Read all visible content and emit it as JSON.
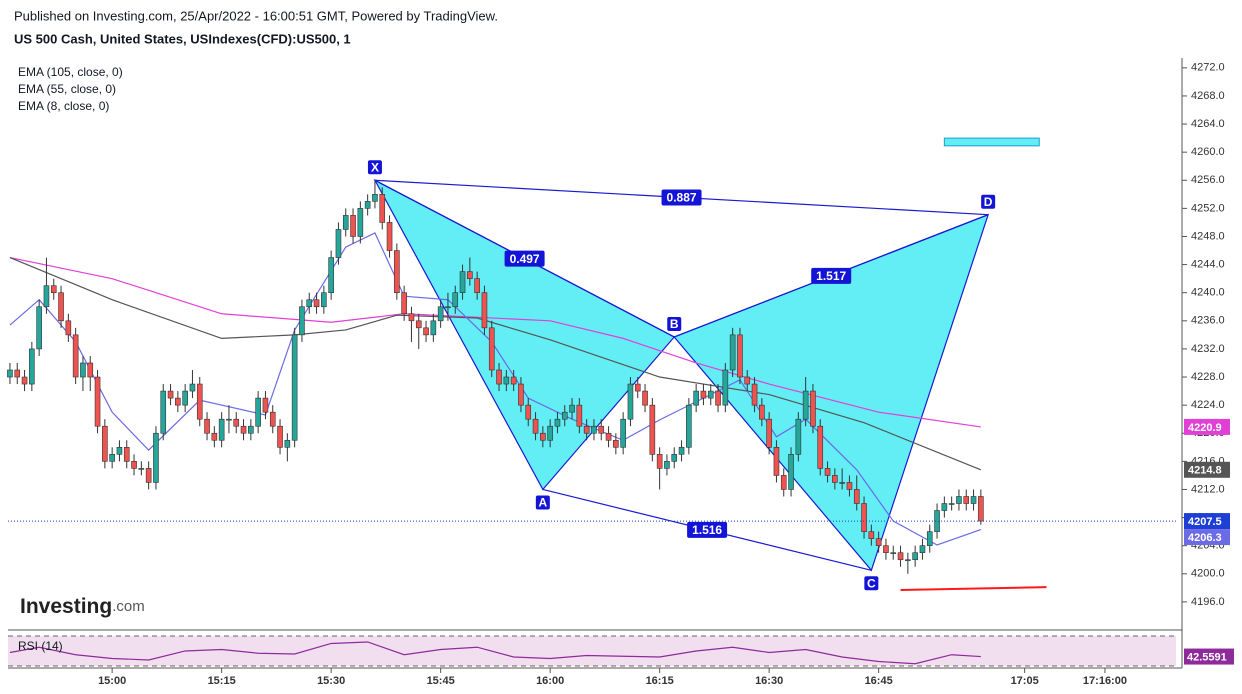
{
  "header": {
    "published": "Published on Investing.com, 25/Apr/2022 - 16:00:51 GMT, Powered by TradingView.",
    "symbol": "US 500 Cash, United States, USIndexes(CFD):US500, 1"
  },
  "logo": {
    "brand": "Investing",
    "suffix": ".com"
  },
  "chart_data": {
    "type": "candlestick",
    "x": [
      "14:46",
      "14:47",
      "14:48",
      "14:49",
      "14:50",
      "14:51",
      "14:52",
      "14:53",
      "14:54",
      "14:55",
      "14:56",
      "14:57",
      "14:58",
      "14:59",
      "15:00",
      "15:01",
      "15:02",
      "15:03",
      "15:04",
      "15:05",
      "15:06",
      "15:07",
      "15:08",
      "15:09",
      "15:10",
      "15:11",
      "15:12",
      "15:13",
      "15:14",
      "15:15",
      "15:16",
      "15:17",
      "15:18",
      "15:19",
      "15:20",
      "15:21",
      "15:22",
      "15:23",
      "15:24",
      "15:25",
      "15:26",
      "15:27",
      "15:28",
      "15:29",
      "15:30",
      "15:31",
      "15:32",
      "15:33",
      "15:34",
      "15:35",
      "15:36",
      "15:37",
      "15:38",
      "15:39",
      "15:40",
      "15:41",
      "15:42",
      "15:43",
      "15:44",
      "15:45",
      "15:46",
      "15:47",
      "15:48",
      "15:49",
      "15:50",
      "15:51",
      "15:52",
      "15:53",
      "15:54",
      "15:55",
      "15:56",
      "15:57",
      "15:58",
      "15:59",
      "16:00",
      "16:01",
      "16:02",
      "16:03",
      "16:04",
      "16:05",
      "16:06",
      "16:07",
      "16:08",
      "16:09",
      "16:10",
      "16:11",
      "16:12",
      "16:13",
      "16:14",
      "16:15",
      "16:16",
      "16:17",
      "16:18",
      "16:19",
      "16:20",
      "16:21",
      "16:22",
      "16:23",
      "16:24",
      "16:25",
      "16:26",
      "16:27",
      "16:28",
      "16:29",
      "16:30",
      "16:31",
      "16:32",
      "16:33",
      "16:34",
      "16:35",
      "16:36",
      "16:37",
      "16:38",
      "16:39",
      "16:40",
      "16:41",
      "16:42",
      "16:43",
      "16:44",
      "16:45",
      "16:46",
      "16:47",
      "16:48",
      "16:49",
      "16:50",
      "16:51",
      "16:52",
      "16:53",
      "16:54",
      "16:55",
      "16:56",
      "16:57",
      "16:58",
      "16:59"
    ],
    "ohlc": [
      [
        4228,
        4230,
        4227,
        4229
      ],
      [
        4229,
        4230,
        4227,
        4228
      ],
      [
        4228,
        4229,
        4226,
        4227
      ],
      [
        4227,
        4233,
        4226,
        4232
      ],
      [
        4232,
        4239,
        4231,
        4238
      ],
      [
        4238,
        4245,
        4237,
        4241
      ],
      [
        4241,
        4242,
        4239,
        4240
      ],
      [
        4240,
        4241,
        4235,
        4236
      ],
      [
        4236,
        4237,
        4233,
        4234
      ],
      [
        4234,
        4235,
        4227,
        4228
      ],
      [
        4228,
        4231,
        4226,
        4230
      ],
      [
        4230,
        4231,
        4226,
        4228
      ],
      [
        4228,
        4229,
        4220,
        4221
      ],
      [
        4221,
        4222,
        4215,
        4216
      ],
      [
        4216,
        4218,
        4215,
        4217
      ],
      [
        4217,
        4219,
        4216,
        4218
      ],
      [
        4218,
        4219,
        4215,
        4216
      ],
      [
        4216,
        4217,
        4214,
        4215
      ],
      [
        4215,
        4216,
        4214,
        4215
      ],
      [
        4215,
        4216,
        4212,
        4213
      ],
      [
        4213,
        4221,
        4212,
        4220
      ],
      [
        4220,
        4227,
        4219,
        4226
      ],
      [
        4226,
        4227,
        4224,
        4225
      ],
      [
        4225,
        4226,
        4223,
        4224
      ],
      [
        4224,
        4227,
        4223,
        4226
      ],
      [
        4226,
        4229,
        4225,
        4227
      ],
      [
        4227,
        4228,
        4221,
        4222
      ],
      [
        4222,
        4223,
        4219,
        4220
      ],
      [
        4220,
        4221,
        4218,
        4219
      ],
      [
        4219,
        4223,
        4218,
        4222
      ],
      [
        4222,
        4224,
        4220,
        4222
      ],
      [
        4222,
        4223,
        4220,
        4221
      ],
      [
        4221,
        4222,
        4219,
        4220
      ],
      [
        4220,
        4222,
        4219,
        4221
      ],
      [
        4221,
        4226,
        4220,
        4225
      ],
      [
        4225,
        4226,
        4222,
        4223
      ],
      [
        4223,
        4224,
        4220,
        4221
      ],
      [
        4221,
        4222,
        4217,
        4218
      ],
      [
        4218,
        4220,
        4216,
        4219
      ],
      [
        4219,
        4235,
        4218,
        4234
      ],
      [
        4234,
        4239,
        4233,
        4238
      ],
      [
        4238,
        4240,
        4237,
        4239
      ],
      [
        4239,
        4240,
        4237,
        4238
      ],
      [
        4238,
        4241,
        4237,
        4240
      ],
      [
        4240,
        4246,
        4239,
        4245
      ],
      [
        4245,
        4250,
        4244,
        4249
      ],
      [
        4249,
        4252,
        4248,
        4251
      ],
      [
        4251,
        4252,
        4247,
        4248
      ],
      [
        4248,
        4253,
        4247,
        4252
      ],
      [
        4252,
        4254,
        4251,
        4253
      ],
      [
        4253,
        4256,
        4252,
        4254
      ],
      [
        4254,
        4255,
        4249,
        4250
      ],
      [
        4250,
        4251,
        4245,
        4246
      ],
      [
        4246,
        4247,
        4239,
        4240
      ],
      [
        4240,
        4241,
        4236,
        4237
      ],
      [
        4237,
        4238,
        4233,
        4236
      ],
      [
        4236,
        4237,
        4232,
        4235
      ],
      [
        4235,
        4236,
        4233,
        4234
      ],
      [
        4234,
        4237,
        4233,
        4236
      ],
      [
        4236,
        4239,
        4235,
        4238
      ],
      [
        4238,
        4240,
        4236,
        4238
      ],
      [
        4238,
        4241,
        4237,
        4240
      ],
      [
        4240,
        4244,
        4239,
        4243
      ],
      [
        4243,
        4245,
        4241,
        4242
      ],
      [
        4242,
        4243,
        4239,
        4240
      ],
      [
        4240,
        4241,
        4234,
        4235
      ],
      [
        4235,
        4236,
        4228,
        4229
      ],
      [
        4229,
        4230,
        4226,
        4227
      ],
      [
        4227,
        4229,
        4226,
        4228
      ],
      [
        4228,
        4229,
        4226,
        4227
      ],
      [
        4227,
        4228,
        4223,
        4224
      ],
      [
        4224,
        4225,
        4221,
        4222
      ],
      [
        4222,
        4223,
        4219,
        4220
      ],
      [
        4220,
        4221,
        4218,
        4219
      ],
      [
        4219,
        4222,
        4218,
        4221
      ],
      [
        4221,
        4223,
        4220,
        4222
      ],
      [
        4222,
        4224,
        4221,
        4223
      ],
      [
        4223,
        4225,
        4222,
        4224
      ],
      [
        4224,
        4225,
        4220,
        4221
      ],
      [
        4221,
        4222,
        4219,
        4220
      ],
      [
        4220,
        4222,
        4219,
        4221
      ],
      [
        4221,
        4222,
        4219,
        4220
      ],
      [
        4220,
        4221,
        4218,
        4219
      ],
      [
        4219,
        4220,
        4217,
        4218
      ],
      [
        4218,
        4223,
        4217,
        4222
      ],
      [
        4222,
        4228,
        4221,
        4227
      ],
      [
        4227,
        4228,
        4225,
        4226
      ],
      [
        4226,
        4227,
        4223,
        4224
      ],
      [
        4224,
        4225,
        4216,
        4217
      ],
      [
        4217,
        4218,
        4212,
        4215
      ],
      [
        4215,
        4217,
        4214,
        4216
      ],
      [
        4216,
        4218,
        4215,
        4217
      ],
      [
        4217,
        4219,
        4216,
        4218
      ],
      [
        4218,
        4225,
        4217,
        4224
      ],
      [
        4224,
        4227,
        4223,
        4226
      ],
      [
        4226,
        4227,
        4224,
        4225
      ],
      [
        4225,
        4227,
        4224,
        4226
      ],
      [
        4226,
        4227,
        4223,
        4224
      ],
      [
        4224,
        4230,
        4223,
        4229
      ],
      [
        4229,
        4235,
        4228,
        4234
      ],
      [
        4234,
        4235,
        4227,
        4228
      ],
      [
        4228,
        4229,
        4226,
        4227
      ],
      [
        4227,
        4228,
        4223,
        4224
      ],
      [
        4224,
        4225,
        4221,
        4222
      ],
      [
        4222,
        4223,
        4217,
        4218
      ],
      [
        4218,
        4219,
        4213,
        4214
      ],
      [
        4214,
        4215,
        4211,
        4212
      ],
      [
        4212,
        4218,
        4211,
        4217
      ],
      [
        4217,
        4223,
        4216,
        4222
      ],
      [
        4222,
        4228,
        4221,
        4226
      ],
      [
        4226,
        4227,
        4220,
        4221
      ],
      [
        4221,
        4222,
        4214,
        4215
      ],
      [
        4215,
        4216,
        4213,
        4214
      ],
      [
        4214,
        4215,
        4212,
        4213
      ],
      [
        4213,
        4215,
        4212,
        4213
      ],
      [
        4213,
        4214,
        4211,
        4212
      ],
      [
        4212,
        4214,
        4209,
        4210
      ],
      [
        4210,
        4211,
        4205,
        4206
      ],
      [
        4206,
        4207,
        4204,
        4205
      ],
      [
        4205,
        4206,
        4203,
        4204
      ],
      [
        4204,
        4205,
        4202,
        4203
      ],
      [
        4203,
        4204,
        4202,
        4203
      ],
      [
        4203,
        4204,
        4201,
        4202
      ],
      [
        4202,
        4203,
        4200,
        4202
      ],
      [
        4202,
        4204,
        4201,
        4203
      ],
      [
        4203,
        4205,
        4202,
        4204
      ],
      [
        4204,
        4207,
        4203,
        4206
      ],
      [
        4206,
        4210,
        4205,
        4209
      ],
      [
        4209,
        4211,
        4208,
        4210
      ],
      [
        4210,
        4211,
        4209,
        4210
      ],
      [
        4210,
        4212,
        4209,
        4211
      ],
      [
        4211,
        4212,
        4209,
        4210
      ],
      [
        4210,
        4212,
        4209,
        4211
      ],
      [
        4211,
        4212,
        4207,
        4207.5
      ]
    ],
    "up_color": "#26a69a",
    "down_color": "#ef5350",
    "last_color": "#1e3fd6",
    "xlim": [
      "14:45:44",
      "17:25:44"
    ],
    "xticks": [
      "15:00",
      "15:15",
      "15:30",
      "15:45",
      "16:00",
      "16:15",
      "16:30",
      "16:45",
      "17:05",
      "17:16:00"
    ],
    "ylim": [
      4192,
      4273.4
    ],
    "yticks": [
      {
        "value": 4196,
        "label": "4196.0"
      },
      {
        "value": 4200,
        "label": "4200.0"
      },
      {
        "value": 4204,
        "label": "4204.0"
      },
      {
        "value": 4208,
        "label": "4208.0"
      },
      {
        "value": 4212,
        "label": "4212.0"
      },
      {
        "value": 4216,
        "label": "4216.0"
      },
      {
        "value": 4220,
        "label": "4220.0"
      },
      {
        "value": 4224,
        "label": "4224.0"
      },
      {
        "value": 4228,
        "label": "4228.0"
      },
      {
        "value": 4232,
        "label": "4232.0"
      },
      {
        "value": 4236,
        "label": "4236.0"
      },
      {
        "value": 4240,
        "label": "4240.0"
      },
      {
        "value": 4244,
        "label": "4244.0"
      },
      {
        "value": 4248,
        "label": "4248.0"
      },
      {
        "value": 4252,
        "label": "4252.0"
      },
      {
        "value": 4256,
        "label": "4256.0"
      },
      {
        "value": 4260,
        "label": "4260.0"
      },
      {
        "value": 4264,
        "label": "4264.0"
      },
      {
        "value": 4268,
        "label": "4268.0"
      },
      {
        "value": 4272,
        "label": "4272.0"
      }
    ],
    "indicators": [
      {
        "name": "EMA (105, close, 0)",
        "color": "#e23fd6",
        "badge_text": "#fff",
        "x": [
          "14:46",
          "15:00",
          "15:15",
          "15:30",
          "15:40",
          "16:00",
          "16:10",
          "16:20",
          "16:30",
          "16:45",
          "16:59"
        ],
        "values": [
          4245,
          4242,
          4237,
          4235.8,
          4237,
          4236,
          4233.5,
          4230,
          4227,
          4223,
          4220.9
        ]
      },
      {
        "name": "EMA (55, close, 0)",
        "color": "#555555",
        "badge_text": "#fff",
        "x": [
          "14:46",
          "15:00",
          "15:15",
          "15:25",
          "15:32",
          "15:39",
          "15:50",
          "16:00",
          "16:15",
          "16:30",
          "16:43",
          "16:59"
        ],
        "values": [
          4245,
          4239,
          4233.5,
          4234,
          4234.7,
          4236.8,
          4236.4,
          4233.3,
          4228,
          4225.5,
          4221.5,
          4214.8
        ]
      },
      {
        "name": "EMA (8, close, 0)",
        "color": "#6b6be6",
        "badge_text": "#fff",
        "x": [
          "14:46",
          "14:50",
          "14:55",
          "15:00",
          "15:05",
          "15:12",
          "15:21",
          "15:25",
          "15:32",
          "15:36",
          "15:40",
          "15:46",
          "15:52",
          "15:57",
          "16:03",
          "16:10",
          "16:15",
          "16:21",
          "16:26",
          "16:31",
          "16:35",
          "16:42",
          "16:47",
          "16:53",
          "16:59"
        ],
        "values": [
          4235.4,
          4239,
          4233,
          4223,
          4217.6,
          4224.7,
          4222.6,
          4234.7,
          4246.5,
          4248.5,
          4239.5,
          4239,
          4233,
          4225,
          4222,
          4219,
          4221.9,
          4225,
          4227.6,
          4219.5,
          4222,
          4214.8,
          4207.5,
          4204.1,
          4206.3
        ]
      }
    ],
    "pattern": {
      "fill": "#62eef4",
      "stroke": "#1a1ad2",
      "label_bg": "#1414d6",
      "points": [
        {
          "label": "X",
          "x": "15:36",
          "y": 4256
        },
        {
          "label": "A",
          "x": "15:59",
          "y": 4212
        },
        {
          "label": "B",
          "x": "16:17",
          "y": 4233.7
        },
        {
          "label": "C",
          "x": "16:44",
          "y": 4200.5
        },
        {
          "label": "D",
          "x": "17:00",
          "y": 4251.1
        }
      ],
      "ratios": {
        "XD": 0.887,
        "XB": 0.497,
        "BD": 1.517,
        "AC": 1.516
      }
    },
    "rectangle": {
      "color": "#62eef4",
      "stroke": "#1a9fd2",
      "x": [
        "16:54",
        "17:07"
      ],
      "y": [
        4262,
        4260.9
      ]
    },
    "line": {
      "color": "#ff1a1a",
      "x": [
        "16:48",
        "17:08"
      ],
      "y": [
        4197.7,
        4198.1
      ]
    },
    "rsi": {
      "name": "RSI (14)",
      "color": "#8e2a9a",
      "band": "#f1dff0",
      "x": [
        "14:46",
        "14:50",
        "14:55",
        "15:00",
        "15:05",
        "15:10",
        "15:15",
        "15:20",
        "15:25",
        "15:30",
        "15:35",
        "15:40",
        "15:45",
        "15:50",
        "15:55",
        "16:00",
        "16:05",
        "16:10",
        "16:15",
        "16:20",
        "16:25",
        "16:30",
        "16:35",
        "16:40",
        "16:45",
        "16:50",
        "16:55",
        "16:59"
      ],
      "values": [
        48,
        55,
        45,
        40,
        38,
        50,
        52,
        47,
        46,
        60,
        62,
        45,
        52,
        55,
        42,
        40,
        44,
        43,
        42,
        50,
        55,
        48,
        52,
        42,
        36,
        33,
        45,
        42.5591
      ],
      "ylim": [
        27.3,
        75.3
      ],
      "levels": [
        30,
        70
      ]
    }
  }
}
